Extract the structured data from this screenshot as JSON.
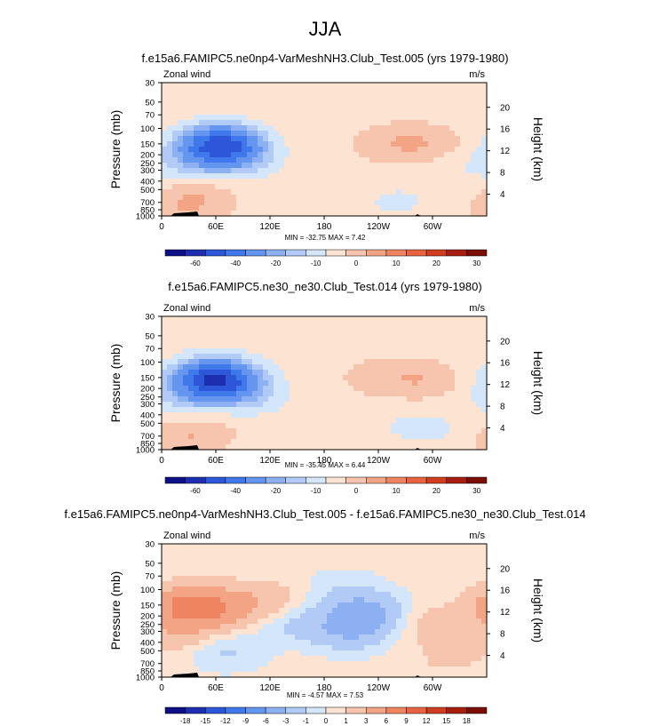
{
  "page_title": "JJA",
  "chart_data": [
    {
      "type": "heatmap",
      "title": "f.e15a6.FAMIPC5.ne0np4-VarMeshNH3.Club_Test.005 (yrs 1979-1980)",
      "left_label": "Zonal wind",
      "right_label": "m/s",
      "ylabel": "Pressure (mb)",
      "ylabel_right": "Height (km)",
      "xticks": [
        "0",
        "60E",
        "120E",
        "180",
        "120W",
        "60W"
      ],
      "yticks": [
        "30",
        "50",
        "70",
        "100",
        "150",
        "200",
        "250",
        "300",
        "400",
        "500",
        "700",
        "850",
        "1000"
      ],
      "height_ticks": [
        "20",
        "16",
        "12",
        "8",
        "4"
      ],
      "minmax": "MIN = -32.75  MAX =   7.42",
      "colorbar_labels": [
        "-60",
        "-40",
        "-20",
        "-10",
        "0",
        "10",
        "20",
        "30"
      ],
      "blobs": [
        {
          "lon": 70,
          "p": 160,
          "v": -25
        },
        {
          "lon": 60,
          "p": 150,
          "v": -20
        },
        {
          "lon": 30,
          "p": 250,
          "v": -8
        },
        {
          "lon": 90,
          "p": 250,
          "v": -6
        },
        {
          "lon": 40,
          "p": 600,
          "v": 6
        },
        {
          "lon": 20,
          "p": 900,
          "v": 4
        },
        {
          "lon": 250,
          "p": 150,
          "v": 4
        },
        {
          "lon": 290,
          "p": 150,
          "v": 6
        },
        {
          "lon": 320,
          "p": 300,
          "v": -2
        },
        {
          "lon": 260,
          "p": 700,
          "v": -4
        },
        {
          "lon": 330,
          "p": 40,
          "v": 1
        }
      ]
    },
    {
      "type": "heatmap",
      "title": "f.e15a6.FAMIPC5.ne30_ne30.Club_Test.014 (yrs 1979-1980)",
      "left_label": "Zonal wind",
      "right_label": "m/s",
      "ylabel": "Pressure (mb)",
      "ylabel_right": "Height (km)",
      "xticks": [
        "0",
        "60E",
        "120E",
        "180",
        "120W",
        "60W"
      ],
      "yticks": [
        "30",
        "50",
        "70",
        "100",
        "150",
        "200",
        "250",
        "300",
        "400",
        "500",
        "700",
        "850",
        "1000"
      ],
      "height_ticks": [
        "20",
        "16",
        "12",
        "8",
        "4"
      ],
      "minmax": "MIN = -35.45  MAX =   6.44",
      "colorbar_labels": [
        "-60",
        "-40",
        "-20",
        "-10",
        "0",
        "10",
        "20",
        "30"
      ],
      "blobs": [
        {
          "lon": 65,
          "p": 160,
          "v": -28
        },
        {
          "lon": 55,
          "p": 150,
          "v": -22
        },
        {
          "lon": 30,
          "p": 250,
          "v": -9
        },
        {
          "lon": 100,
          "p": 250,
          "v": -7
        },
        {
          "lon": 40,
          "p": 600,
          "v": 5
        },
        {
          "lon": 20,
          "p": 900,
          "v": 4
        },
        {
          "lon": 240,
          "p": 150,
          "v": 4
        },
        {
          "lon": 290,
          "p": 160,
          "v": 6
        },
        {
          "lon": 300,
          "p": 600,
          "v": -4
        },
        {
          "lon": 250,
          "p": 500,
          "v": -2
        }
      ]
    },
    {
      "type": "heatmap",
      "title": "f.e15a6.FAMIPC5.ne0np4-VarMeshNH3.Club_Test.005 - f.e15a6.FAMIPC5.ne30_ne30.Club_Test.014",
      "left_label": "Zonal wind",
      "right_label": "m/s",
      "ylabel": "Pressure (mb)",
      "ylabel_right": "Height (km)",
      "xticks": [
        "0",
        "60E",
        "120E",
        "180",
        "120W",
        "60W"
      ],
      "yticks": [
        "30",
        "50",
        "70",
        "100",
        "150",
        "200",
        "250",
        "300",
        "400",
        "500",
        "700",
        "850",
        "1000"
      ],
      "height_ticks": [
        "20",
        "16",
        "12",
        "8",
        "4"
      ],
      "minmax": "MIN =  -4.57  MAX =   7.53",
      "colorbar_labels": [
        "-18",
        "-15",
        "-12",
        "-9",
        "-6",
        "-3",
        "-1",
        "0",
        "1",
        "3",
        "6",
        "9",
        "12",
        "15",
        "18"
      ],
      "blobs": [
        {
          "lon": 30,
          "p": 150,
          "v": 6
        },
        {
          "lon": 60,
          "p": 170,
          "v": 3
        },
        {
          "lon": 110,
          "p": 130,
          "v": 2
        },
        {
          "lon": 20,
          "p": 300,
          "v": 2
        },
        {
          "lon": 225,
          "p": 180,
          "v": -4
        },
        {
          "lon": 210,
          "p": 300,
          "v": -3
        },
        {
          "lon": 150,
          "p": 250,
          "v": -1.5
        },
        {
          "lon": 70,
          "p": 500,
          "v": -1.5
        },
        {
          "lon": 300,
          "p": 250,
          "v": 1.5
        },
        {
          "lon": 200,
          "p": 100,
          "v": -1
        },
        {
          "lon": 320,
          "p": 600,
          "v": 1
        }
      ]
    }
  ]
}
